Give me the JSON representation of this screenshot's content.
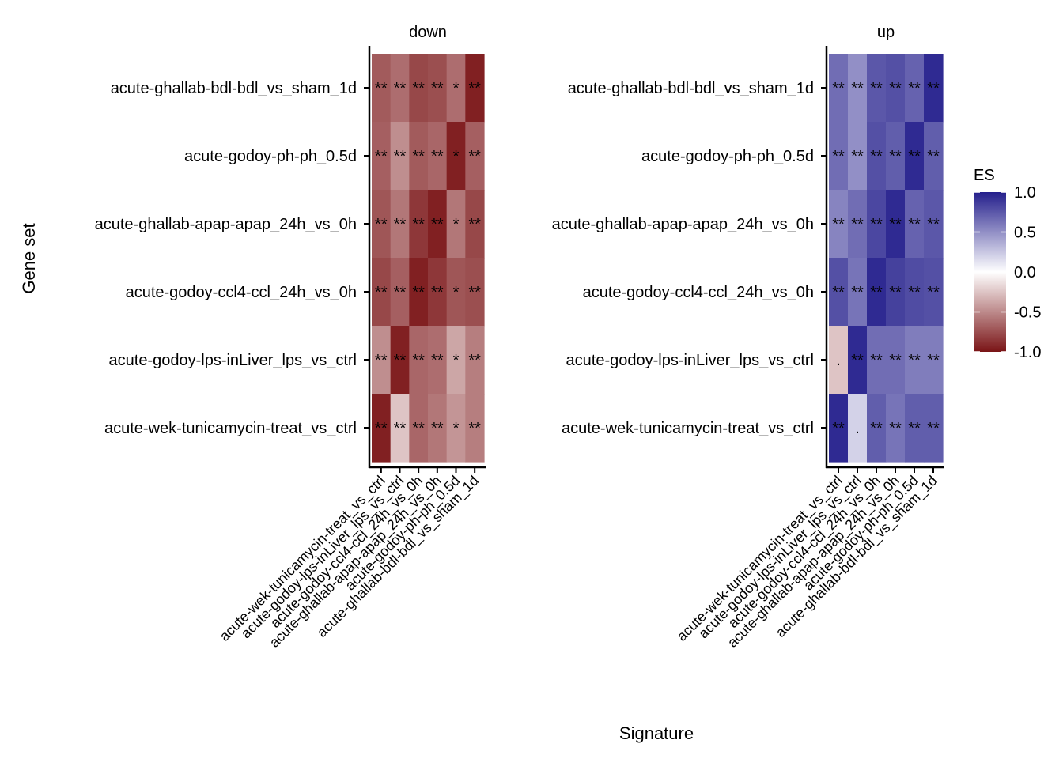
{
  "chart_data": {
    "type": "heatmap",
    "title": "",
    "xlabel": "Signature",
    "ylabel": "Gene set",
    "legend": {
      "title": "ES",
      "position": "right",
      "ticks": [
        "1.0",
        "0.5",
        "0.0",
        "-0.5",
        "-1.0"
      ],
      "range": [
        -1.0,
        1.0
      ]
    },
    "colors": {
      "low": "#7a1416",
      "mid": "#ffffff",
      "high": "#241f8c"
    },
    "rows": [
      "acute-ghallab-bdl-bdl_vs_sham_1d",
      "acute-godoy-ph-ph_0.5d",
      "acute-ghallab-apap-apap_24h_vs_0h",
      "acute-godoy-ccl4-ccl_24h_vs_0h",
      "acute-godoy-lps-inLiver_lps_vs_ctrl",
      "acute-wek-tunicamycin-treat_vs_ctrl"
    ],
    "columns": [
      "acute-wek-tunicamycin-treat_vs_ctrl",
      "acute-godoy-lps-inLiver_lps_vs_ctrl",
      "acute-godoy-ccl4-ccl_24h_vs_0h",
      "acute-ghallab-apap-apap_24h_vs_0h",
      "acute-godoy-ph-ph_0.5d",
      "acute-ghallab-bdl-bdl_vs_sham_1d"
    ],
    "panels": [
      {
        "name": "down",
        "values": [
          [
            -0.7,
            -0.62,
            -0.78,
            -0.75,
            -0.62,
            -0.95
          ],
          [
            -0.68,
            -0.48,
            -0.7,
            -0.65,
            -0.95,
            -0.68
          ],
          [
            -0.72,
            -0.58,
            -0.85,
            -0.95,
            -0.58,
            -0.78
          ],
          [
            -0.78,
            -0.68,
            -0.95,
            -0.85,
            -0.72,
            -0.75
          ],
          [
            -0.48,
            -0.95,
            -0.65,
            -0.62,
            -0.38,
            -0.55
          ],
          [
            -0.95,
            -0.25,
            -0.65,
            -0.58,
            -0.45,
            -0.55
          ]
        ],
        "labels": [
          [
            "**",
            "**",
            "**",
            "**",
            "*",
            "**"
          ],
          [
            "**",
            "**",
            "**",
            "**",
            "*",
            "**"
          ],
          [
            "**",
            "**",
            "**",
            "**",
            "*",
            "**"
          ],
          [
            "**",
            "**",
            "**",
            "**",
            "*",
            "**"
          ],
          [
            "**",
            "**",
            "**",
            "**",
            "*",
            "**"
          ],
          [
            "**",
            "**",
            "**",
            "**",
            "*",
            "**"
          ]
        ]
      },
      {
        "name": "up",
        "values": [
          [
            0.65,
            0.5,
            0.75,
            0.78,
            0.7,
            0.95
          ],
          [
            0.65,
            0.5,
            0.78,
            0.72,
            0.95,
            0.72
          ],
          [
            0.55,
            0.65,
            0.82,
            0.95,
            0.7,
            0.75
          ],
          [
            0.78,
            0.62,
            0.95,
            0.85,
            0.8,
            0.78
          ],
          [
            -0.25,
            0.95,
            0.65,
            0.65,
            0.58,
            0.58
          ],
          [
            0.95,
            0.2,
            0.72,
            0.62,
            0.72,
            0.72
          ]
        ],
        "labels": [
          [
            "**",
            "**",
            "**",
            "**",
            "**",
            "**"
          ],
          [
            "**",
            "**",
            "**",
            "**",
            "**",
            "**"
          ],
          [
            "**",
            "**",
            "**",
            "**",
            "**",
            "**"
          ],
          [
            "**",
            "**",
            "**",
            "**",
            "**",
            "**"
          ],
          [
            ".",
            "**",
            "**",
            "**",
            "**",
            "**"
          ],
          [
            "**",
            ".",
            "**",
            "**",
            "**",
            "**"
          ]
        ]
      }
    ]
  }
}
